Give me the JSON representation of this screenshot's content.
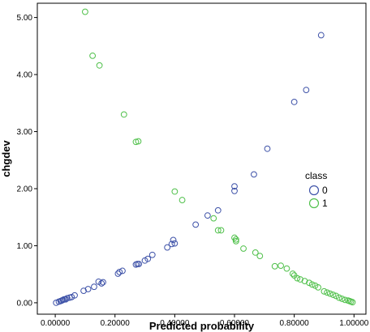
{
  "chart_data": {
    "type": "scatter",
    "xlabel": "Predicted probability",
    "ylabel": "chgdev",
    "xlim": [
      -0.06,
      1.04
    ],
    "ylim": [
      -0.2,
      5.25
    ],
    "x_ticks": [
      0.0,
      0.2,
      0.4,
      0.6,
      0.8,
      1.0
    ],
    "x_tick_labels": [
      "0.00000",
      "0.20000",
      "0.40000",
      "0.60000",
      "0.80000",
      "1.00000"
    ],
    "y_ticks": [
      0.0,
      1.0,
      2.0,
      3.0,
      4.0,
      5.0
    ],
    "y_tick_labels": [
      "0.00",
      "1.00",
      "2.00",
      "3.00",
      "4.00",
      "5.00"
    ],
    "grid": false,
    "legend": {
      "title": "class",
      "position": "right"
    },
    "series": [
      {
        "name": "0",
        "color": "#3e52a8",
        "points": [
          [
            0.003,
            0.0
          ],
          [
            0.012,
            0.02
          ],
          [
            0.018,
            0.03
          ],
          [
            0.022,
            0.04
          ],
          [
            0.026,
            0.05
          ],
          [
            0.03,
            0.06
          ],
          [
            0.035,
            0.06
          ],
          [
            0.04,
            0.08
          ],
          [
            0.048,
            0.09
          ],
          [
            0.055,
            0.1
          ],
          [
            0.065,
            0.13
          ],
          [
            0.095,
            0.21
          ],
          [
            0.11,
            0.24
          ],
          [
            0.13,
            0.28
          ],
          [
            0.145,
            0.37
          ],
          [
            0.155,
            0.34
          ],
          [
            0.16,
            0.36
          ],
          [
            0.21,
            0.51
          ],
          [
            0.215,
            0.54
          ],
          [
            0.225,
            0.56
          ],
          [
            0.27,
            0.67
          ],
          [
            0.275,
            0.68
          ],
          [
            0.28,
            0.68
          ],
          [
            0.3,
            0.74
          ],
          [
            0.31,
            0.77
          ],
          [
            0.325,
            0.84
          ],
          [
            0.375,
            0.97
          ],
          [
            0.39,
            1.03
          ],
          [
            0.395,
            1.1
          ],
          [
            0.4,
            1.04
          ],
          [
            0.47,
            1.37
          ],
          [
            0.51,
            1.53
          ],
          [
            0.545,
            1.62
          ],
          [
            0.6,
            1.96
          ],
          [
            0.6,
            2.04
          ],
          [
            0.665,
            2.25
          ],
          [
            0.71,
            2.7
          ],
          [
            0.8,
            3.52
          ],
          [
            0.84,
            3.73
          ],
          [
            0.89,
            4.69
          ]
        ]
      },
      {
        "name": "1",
        "color": "#4fc04a",
        "points": [
          [
            0.1,
            5.1
          ],
          [
            0.125,
            4.33
          ],
          [
            0.148,
            4.16
          ],
          [
            0.23,
            3.3
          ],
          [
            0.27,
            2.82
          ],
          [
            0.278,
            2.83
          ],
          [
            0.4,
            1.95
          ],
          [
            0.425,
            1.8
          ],
          [
            0.53,
            1.48
          ],
          [
            0.545,
            1.27
          ],
          [
            0.555,
            1.27
          ],
          [
            0.6,
            1.14
          ],
          [
            0.605,
            1.11
          ],
          [
            0.605,
            1.08
          ],
          [
            0.63,
            0.95
          ],
          [
            0.67,
            0.88
          ],
          [
            0.685,
            0.82
          ],
          [
            0.735,
            0.64
          ],
          [
            0.755,
            0.65
          ],
          [
            0.775,
            0.6
          ],
          [
            0.795,
            0.51
          ],
          [
            0.8,
            0.48
          ],
          [
            0.81,
            0.43
          ],
          [
            0.82,
            0.41
          ],
          [
            0.835,
            0.38
          ],
          [
            0.85,
            0.35
          ],
          [
            0.86,
            0.32
          ],
          [
            0.87,
            0.3
          ],
          [
            0.88,
            0.27
          ],
          [
            0.9,
            0.2
          ],
          [
            0.91,
            0.18
          ],
          [
            0.92,
            0.16
          ],
          [
            0.93,
            0.14
          ],
          [
            0.94,
            0.12
          ],
          [
            0.95,
            0.09
          ],
          [
            0.96,
            0.07
          ],
          [
            0.97,
            0.05
          ],
          [
            0.98,
            0.04
          ],
          [
            0.985,
            0.03
          ],
          [
            0.99,
            0.02
          ],
          [
            0.995,
            0.01
          ]
        ]
      }
    ]
  }
}
